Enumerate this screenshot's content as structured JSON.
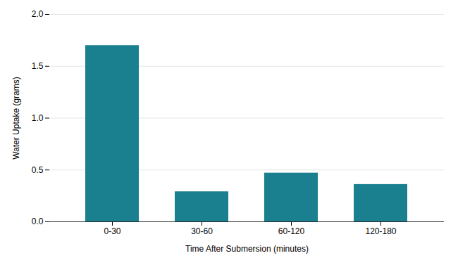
{
  "chart_data": {
    "type": "bar",
    "categories": [
      "0-30",
      "30-60",
      "60-120",
      "120-180"
    ],
    "values": [
      1.7,
      0.29,
      0.47,
      0.36
    ],
    "color": "#1a7f8e",
    "xlabel": "Time After Submersion (minutes)",
    "ylabel": "Water Uptake (grams)",
    "ylim": [
      0,
      2.0
    ],
    "yticks": [
      {
        "value": 0.0,
        "label": "0.0"
      },
      0.5,
      {
        "value": 1.0,
        "label": "1.0"
      },
      1.5,
      {
        "value": 2.0,
        "label": "2.0"
      }
    ],
    "grid": true
  }
}
